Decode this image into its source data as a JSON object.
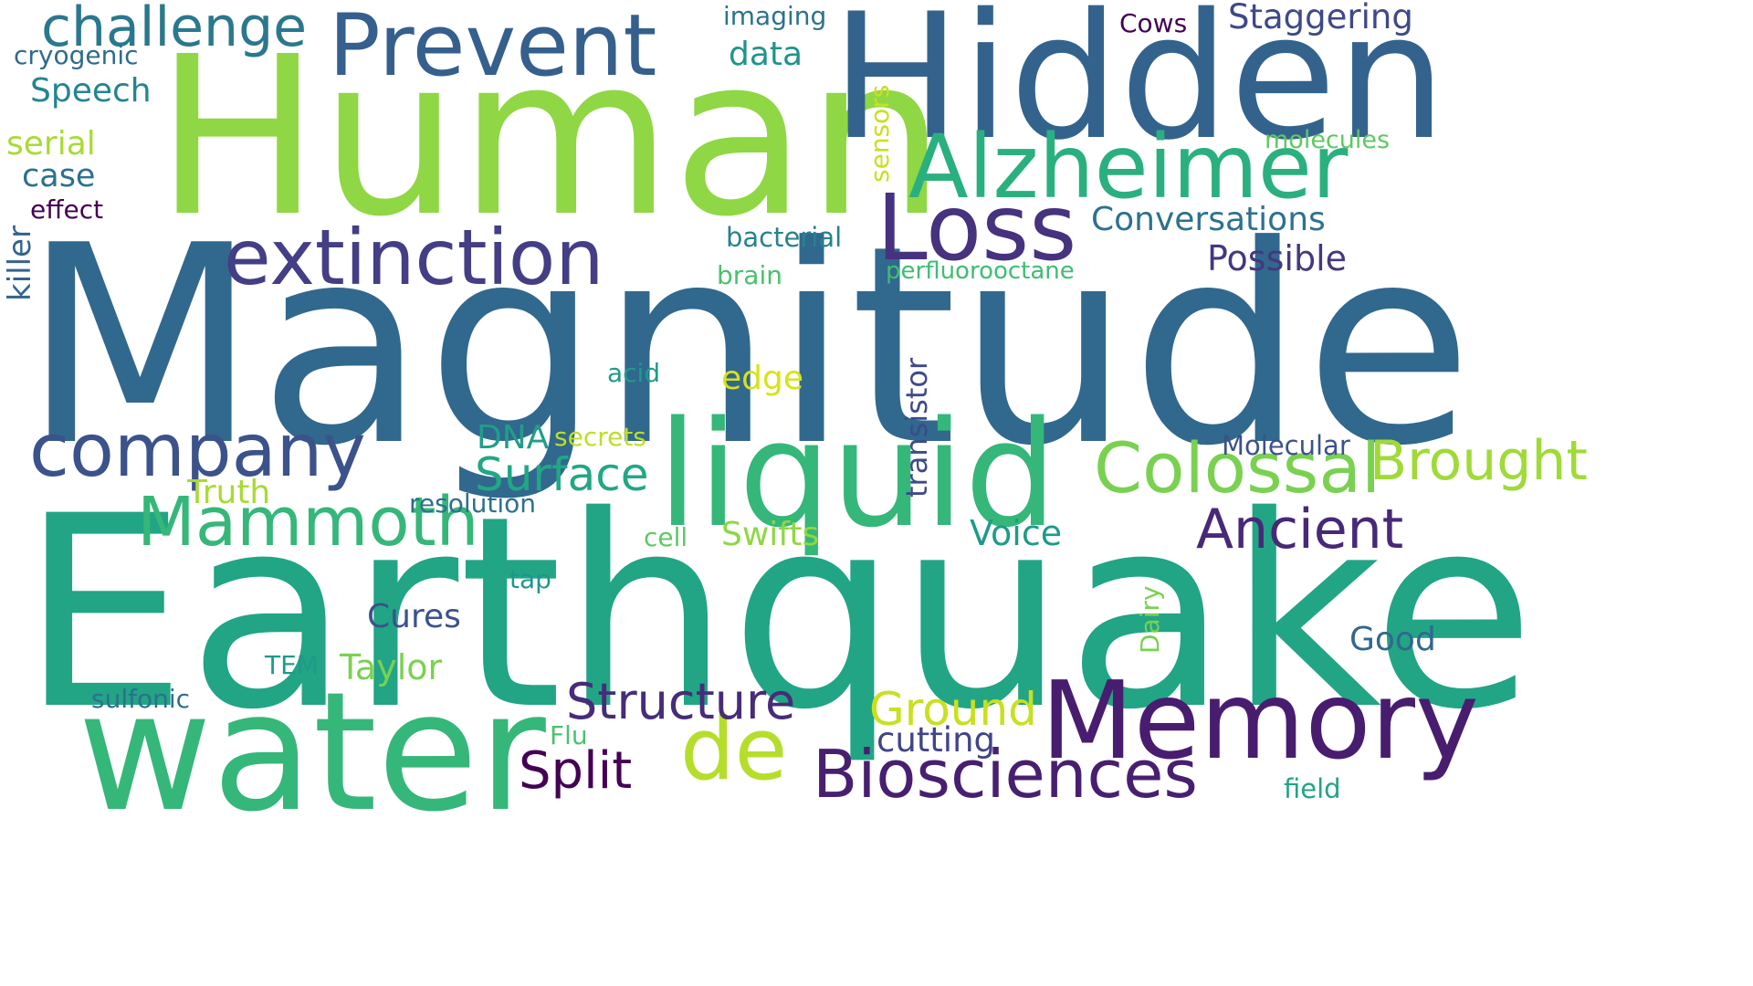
{
  "words": [
    {
      "text": "Magnitude",
      "color": "#31688e"
    },
    {
      "text": "Earthquake",
      "color": "#21a585"
    },
    {
      "text": "Human",
      "color": "#8fd744"
    },
    {
      "text": "Hidden",
      "color": "#33638d"
    },
    {
      "text": "water",
      "color": "#35b779"
    },
    {
      "text": "liquid",
      "color": "#35b779"
    },
    {
      "text": "Memory",
      "color": "#481d6f"
    },
    {
      "text": "Loss",
      "color": "#46327e"
    },
    {
      "text": "Alzheimer",
      "color": "#2ab07f"
    },
    {
      "text": "Prevent",
      "color": "#355f8d"
    },
    {
      "text": "extinction",
      "color": "#433e85"
    },
    {
      "text": "company",
      "color": "#3b528b"
    },
    {
      "text": "Colossal",
      "color": "#7ad151"
    },
    {
      "text": "Biosciences",
      "color": "#481f70"
    },
    {
      "text": "de",
      "color": "#b5de2b"
    },
    {
      "text": "Mammoth",
      "color": "#35b779"
    },
    {
      "text": "challenge",
      "color": "#2a788e"
    },
    {
      "text": "Ancient",
      "color": "#482878"
    },
    {
      "text": "Brought",
      "color": "#a0da39"
    },
    {
      "text": "Structure",
      "color": "#472c7a"
    },
    {
      "text": "Split",
      "color": "#440154"
    },
    {
      "text": "Ground",
      "color": "#c8e020"
    },
    {
      "text": "Surface",
      "color": "#22a785"
    },
    {
      "text": "Conversations",
      "color": "#2c728e"
    },
    {
      "text": "Possible",
      "color": "#453781"
    },
    {
      "text": "Staggering",
      "color": "#3e4989"
    },
    {
      "text": "Voice",
      "color": "#1f9a8a"
    },
    {
      "text": "Swifts",
      "color": "#8fd744"
    },
    {
      "text": "cutting",
      "color": "#414487"
    },
    {
      "text": "Cures",
      "color": "#3b528b"
    },
    {
      "text": "Taylor",
      "color": "#7ad151"
    },
    {
      "text": "Speech",
      "color": "#25858e"
    },
    {
      "text": "Good",
      "color": "#31688e"
    },
    {
      "text": "edge",
      "color": "#d8e219"
    },
    {
      "text": "Molecular",
      "color": "#3b528b"
    },
    {
      "text": "DNA",
      "color": "#1f9e89"
    },
    {
      "text": "Truth",
      "color": "#a8db34"
    },
    {
      "text": "data",
      "color": "#20938c"
    },
    {
      "text": "case",
      "color": "#2c718e"
    },
    {
      "text": "serial",
      "color": "#a8db34"
    },
    {
      "text": "bacterial",
      "color": "#26828e"
    },
    {
      "text": "resolution",
      "color": "#2d708e"
    },
    {
      "text": "secrets",
      "color": "#bddf26"
    },
    {
      "text": "brain",
      "color": "#4ac16d"
    },
    {
      "text": "perfluorooctane",
      "color": "#40bd72"
    },
    {
      "text": "molecules",
      "color": "#5ec962"
    },
    {
      "text": "imaging",
      "color": "#2c728e"
    },
    {
      "text": "acid",
      "color": "#1e9b8a"
    },
    {
      "text": "cryogenic",
      "color": "#2f6b8e"
    },
    {
      "text": "Cows",
      "color": "#440154"
    },
    {
      "text": "effect",
      "color": "#440154"
    },
    {
      "text": "sulfonic",
      "color": "#2d708e"
    },
    {
      "text": "TEM",
      "color": "#1f9a8a"
    },
    {
      "text": "cell",
      "color": "#5ec962"
    },
    {
      "text": "tap",
      "color": "#1f968b"
    },
    {
      "text": "Flu",
      "color": "#4ac16d"
    },
    {
      "text": "field",
      "color": "#20a486"
    },
    {
      "text": "sensors",
      "color": "#c8e020"
    },
    {
      "text": "transistor",
      "color": "#3e4a89"
    },
    {
      "text": "killer",
      "color": "#33638d"
    },
    {
      "text": "Dairy",
      "color": "#7ad151"
    }
  ]
}
